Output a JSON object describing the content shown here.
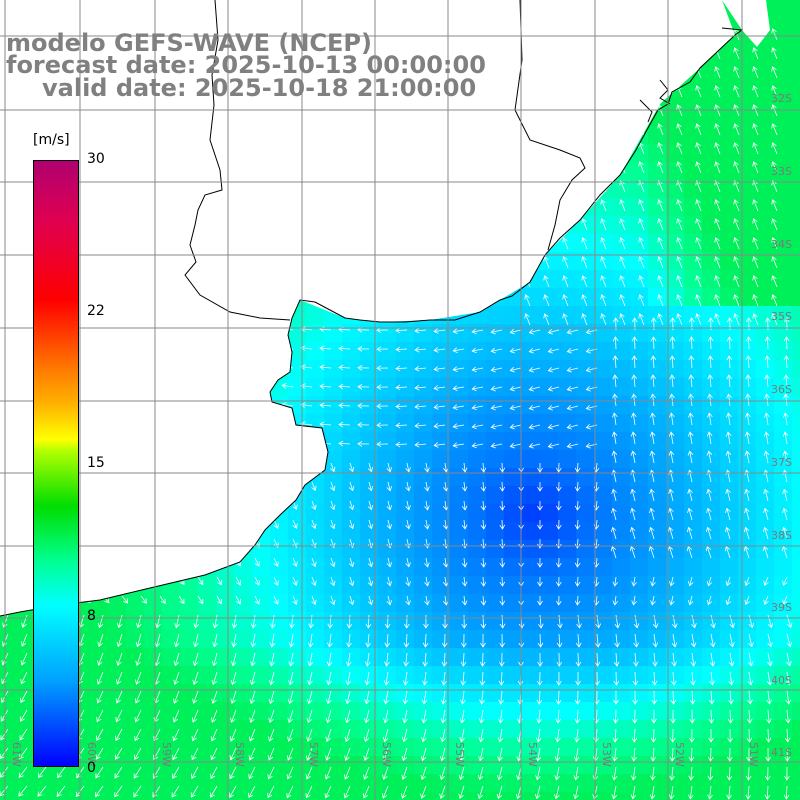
{
  "header": {
    "title_line1": "modelo GEFS-WAVE (NCEP)",
    "title_line2": "forecast date: 2025-10-13 00:00:00",
    "title_line3": "valid date: 2025-10-18 21:00:00"
  },
  "colorbar": {
    "unit": "[m/s]",
    "ticks": [
      "30",
      "22",
      "15",
      "8",
      "0"
    ]
  },
  "lat_labels": [
    "32S",
    "33S",
    "34S",
    "35S",
    "36S",
    "37S",
    "38S",
    "39S",
    "40S",
    "41S"
  ],
  "lon_labels": [
    "61W",
    "60W",
    "59W",
    "58W",
    "57W",
    "56W",
    "55W",
    "54W",
    "53W",
    "52W",
    "51W"
  ],
  "colors": {
    "land": "#ffffff",
    "coast": "#000000",
    "grid": "#888888",
    "arrow": "#ffffff"
  }
}
